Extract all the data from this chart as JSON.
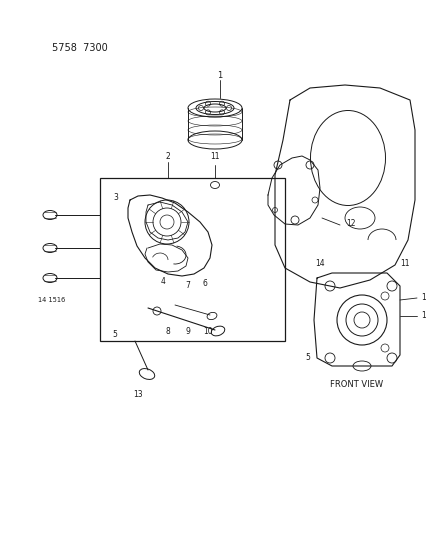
{
  "title": "5758  7300",
  "bg_color": "#ffffff",
  "line_color": "#1a1a1a",
  "fig_width": 4.27,
  "fig_height": 5.33,
  "dpi": 100,
  "front_view_label": "FRONT VIEW"
}
